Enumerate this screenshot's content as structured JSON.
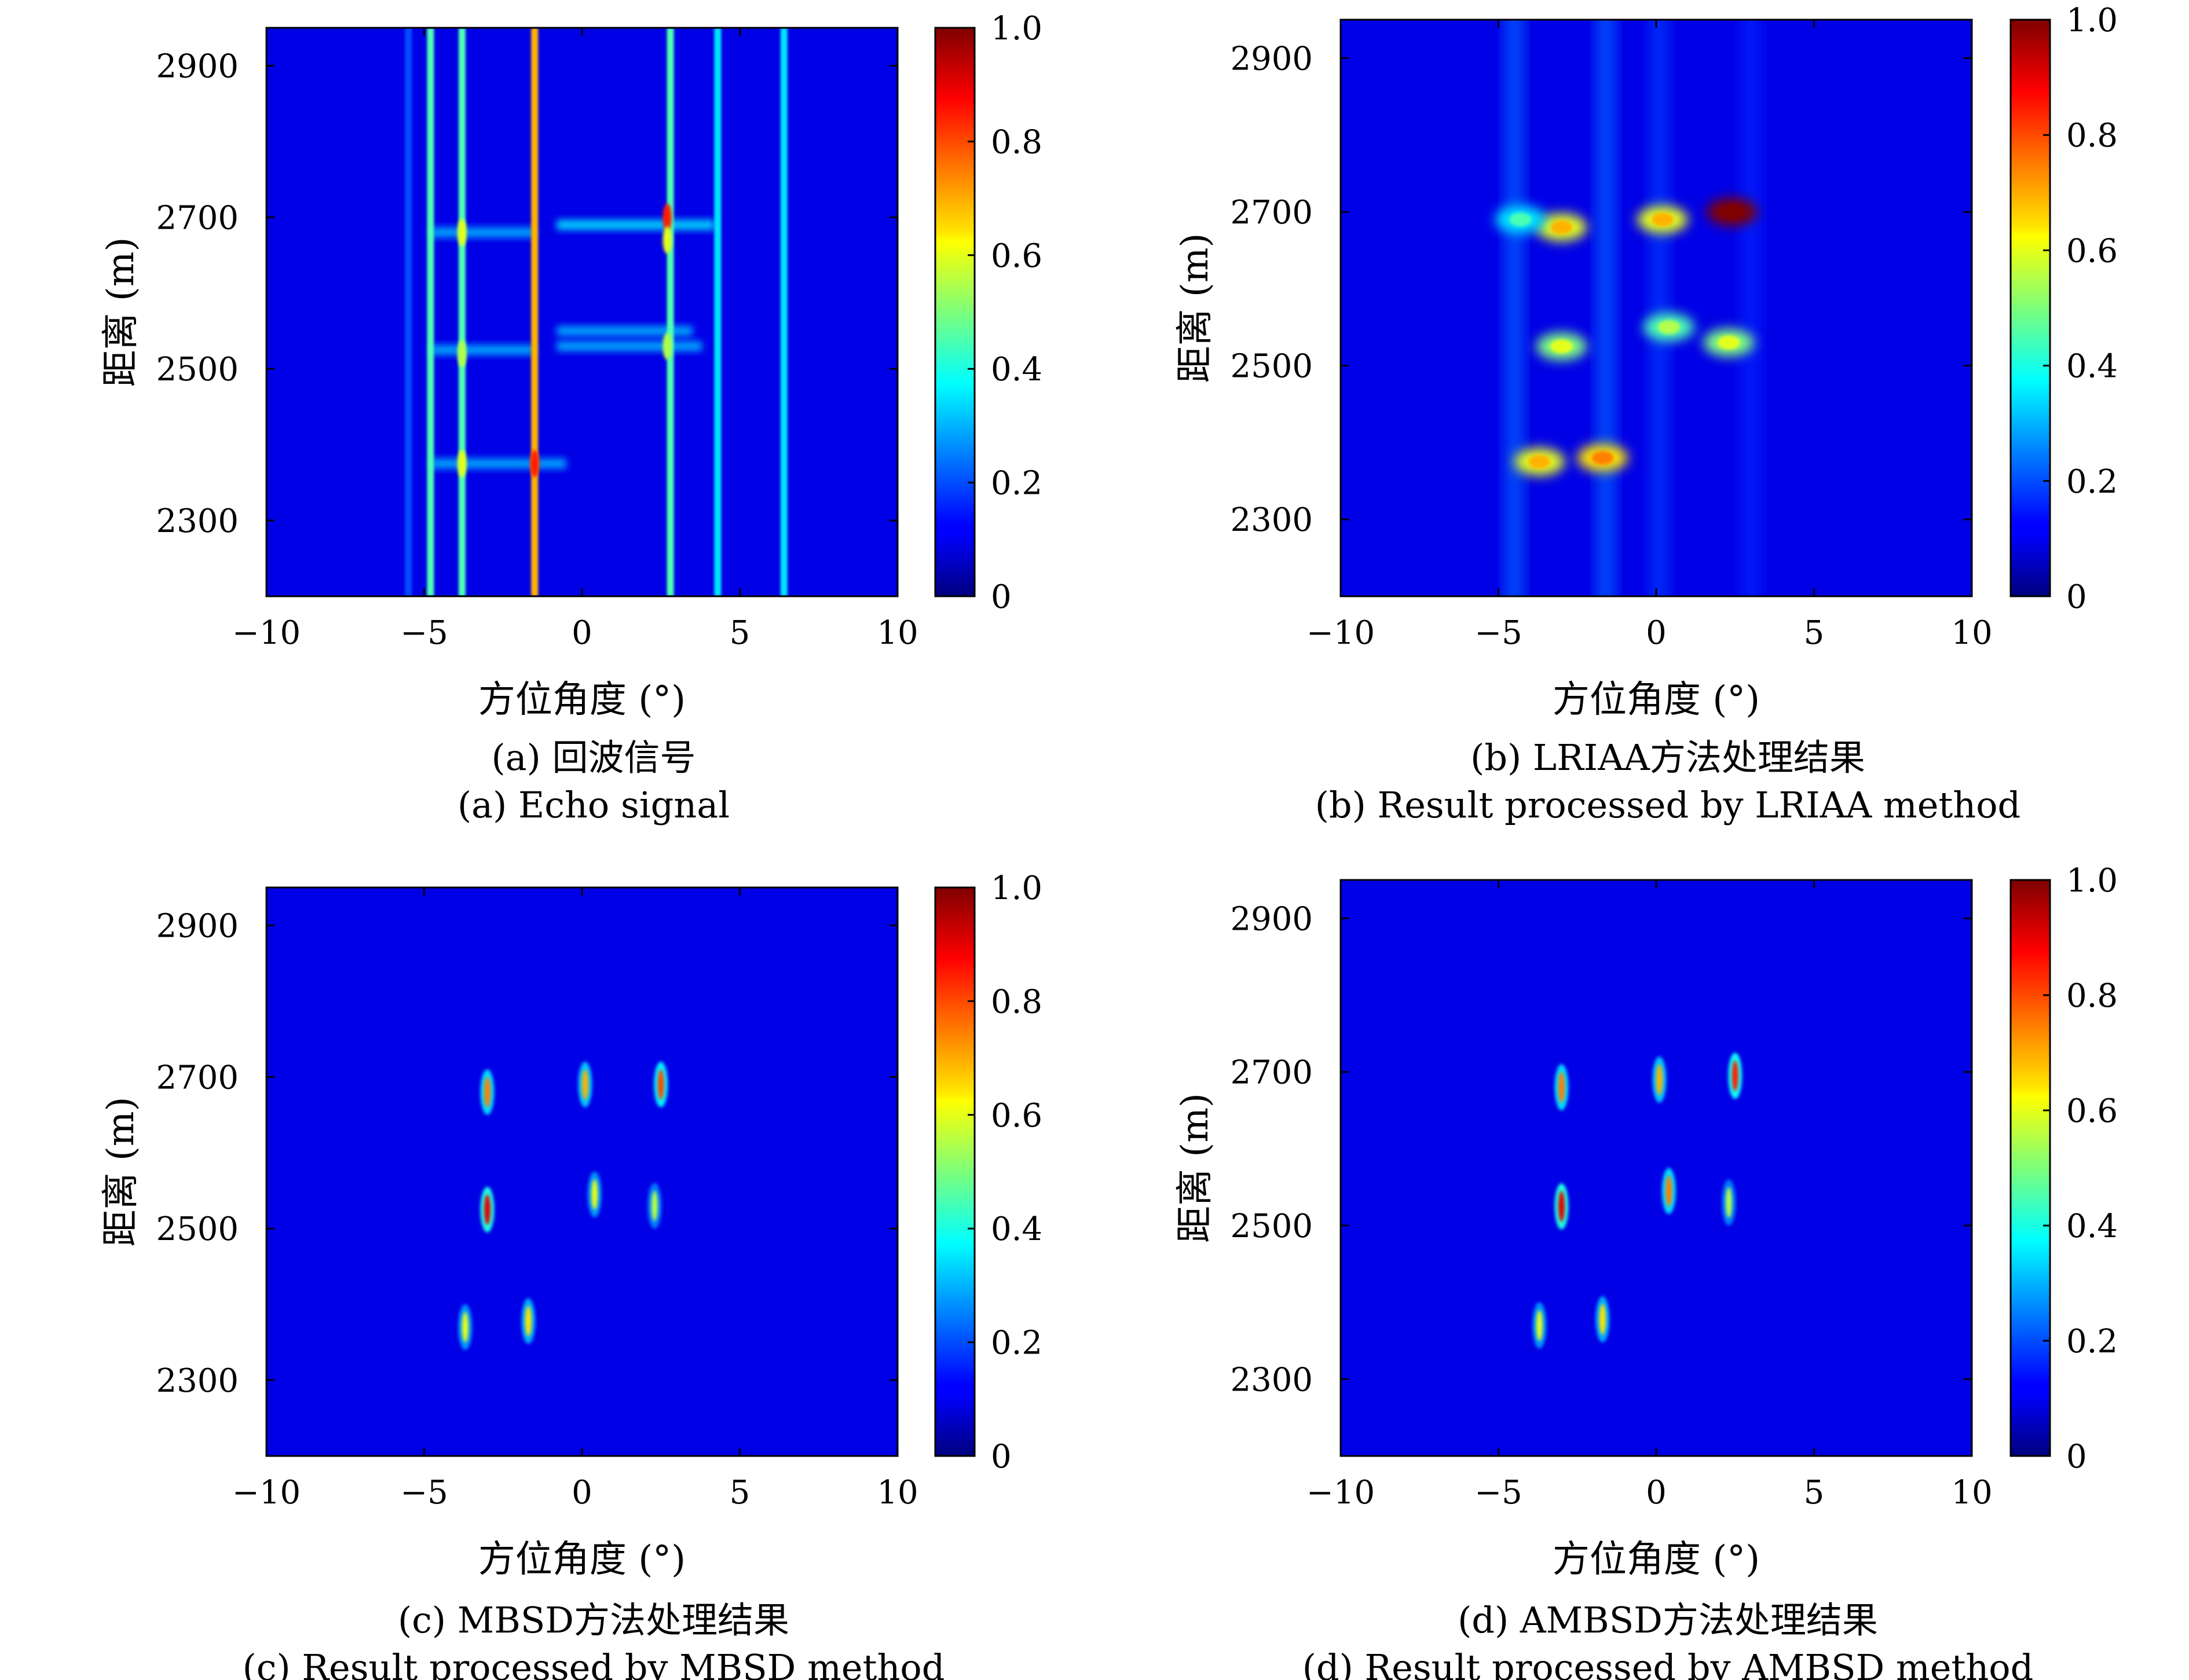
{
  "chart_data": [
    {
      "id": "a",
      "type": "heatmap",
      "caption_cn": "(a) 回波信号",
      "caption_en": "(a) Echo signal",
      "xlabel": "方位角度 (°)",
      "ylabel": "距离 (m)",
      "xlim": [
        -10,
        10
      ],
      "ylim": [
        2200,
        2950
      ],
      "xticks": [
        -10,
        -5,
        0,
        5,
        10
      ],
      "xtick_labels": [
        "−10",
        "−5",
        "0",
        "5",
        "10"
      ],
      "yticks": [
        2300,
        2500,
        2700,
        2900
      ],
      "ytick_labels": [
        "2300",
        "2500",
        "2700",
        "2900"
      ],
      "colorbar": {
        "range": [
          0,
          1
        ],
        "ticks": [
          "0",
          "0.2",
          "0.4",
          "0.6",
          "0.8",
          "1.0"
        ],
        "colormap": "jet"
      },
      "vertical_lines": [
        {
          "x": -5.5,
          "intensity": 0.2
        },
        {
          "x": -4.8,
          "intensity": 0.45
        },
        {
          "x": -3.8,
          "intensity": 0.45
        },
        {
          "x": -1.5,
          "intensity": 0.7
        },
        {
          "x": 2.8,
          "intensity": 0.45
        },
        {
          "x": 4.3,
          "intensity": 0.35
        },
        {
          "x": 6.4,
          "intensity": 0.35
        }
      ],
      "horizontal_streaks": [
        {
          "x0": -4.8,
          "x1": -1.5,
          "y": 2680,
          "intensity": 0.3
        },
        {
          "x0": -0.8,
          "x1": 4.2,
          "y": 2690,
          "intensity": 0.35
        },
        {
          "x0": -4.8,
          "x1": -1.5,
          "y": 2525,
          "intensity": 0.3
        },
        {
          "x0": -0.8,
          "x1": 3.5,
          "y": 2550,
          "intensity": 0.3
        },
        {
          "x0": -0.8,
          "x1": 3.8,
          "y": 2530,
          "intensity": 0.3
        },
        {
          "x0": -4.8,
          "x1": -0.5,
          "y": 2375,
          "intensity": 0.3
        }
      ],
      "hotspots": [
        {
          "x": 2.7,
          "y": 2700,
          "intensity": 0.85
        },
        {
          "x": 2.7,
          "y": 2670,
          "intensity": 0.6
        },
        {
          "x": -3.8,
          "y": 2680,
          "intensity": 0.6
        },
        {
          "x": -3.8,
          "y": 2520,
          "intensity": 0.55
        },
        {
          "x": -3.8,
          "y": 2375,
          "intensity": 0.6
        },
        {
          "x": -1.5,
          "y": 2375,
          "intensity": 0.85
        },
        {
          "x": 2.7,
          "y": 2530,
          "intensity": 0.55
        }
      ]
    },
    {
      "id": "b",
      "type": "heatmap",
      "caption_cn": "(b) LRIAA方法处理结果",
      "caption_en": "(b) Result processed by LRIAA method",
      "xlabel": "方位角度 (°)",
      "ylabel": "距离 (m)",
      "xlim": [
        -10,
        10
      ],
      "ylim": [
        2200,
        2950
      ],
      "xticks": [
        -10,
        -5,
        0,
        5,
        10
      ],
      "xtick_labels": [
        "−10",
        "−5",
        "0",
        "5",
        "10"
      ],
      "yticks": [
        2300,
        2500,
        2700,
        2900
      ],
      "ytick_labels": [
        "2300",
        "2500",
        "2700",
        "2900"
      ],
      "colorbar": {
        "range": [
          0,
          1
        ],
        "ticks": [
          "0",
          "0.2",
          "0.4",
          "0.6",
          "0.8",
          "1.0"
        ],
        "colormap": "jet"
      },
      "vertical_bands": [
        {
          "x": -4.5,
          "intensity": 0.22
        },
        {
          "x": -1.6,
          "intensity": 0.22
        },
        {
          "x": 0.1,
          "intensity": 0.18
        },
        {
          "x": 3.0,
          "intensity": 0.16
        },
        {
          "x": 6.8,
          "intensity": 0.1
        }
      ],
      "blobs": [
        {
          "x": -3.0,
          "y": 2680,
          "intensity": 0.6
        },
        {
          "x": -4.3,
          "y": 2690,
          "intensity": 0.35
        },
        {
          "x": 0.2,
          "y": 2690,
          "intensity": 0.6
        },
        {
          "x": 2.4,
          "y": 2700,
          "intensity": 1.0
        },
        {
          "x": -3.0,
          "y": 2525,
          "intensity": 0.5
        },
        {
          "x": 0.4,
          "y": 2550,
          "intensity": 0.45
        },
        {
          "x": 2.3,
          "y": 2530,
          "intensity": 0.5
        },
        {
          "x": -3.7,
          "y": 2375,
          "intensity": 0.6
        },
        {
          "x": -1.7,
          "y": 2380,
          "intensity": 0.65
        }
      ]
    },
    {
      "id": "c",
      "type": "heatmap",
      "caption_cn": "(c) MBSD方法处理结果",
      "caption_en": "(c) Result processed by MBSD method",
      "xlabel": "方位角度 (°)",
      "ylabel": "距离 (m)",
      "xlim": [
        -10,
        10
      ],
      "ylim": [
        2200,
        2950
      ],
      "xticks": [
        -10,
        -5,
        0,
        5,
        10
      ],
      "xtick_labels": [
        "−10",
        "−5",
        "0",
        "5",
        "10"
      ],
      "yticks": [
        2300,
        2500,
        2700,
        2900
      ],
      "ytick_labels": [
        "2300",
        "2500",
        "2700",
        "2900"
      ],
      "colorbar": {
        "range": [
          0,
          1
        ],
        "ticks": [
          "0",
          "0.2",
          "0.4",
          "0.6",
          "0.8",
          "1.0"
        ],
        "colormap": "jet"
      },
      "points": [
        {
          "x": -3.0,
          "y": 2680,
          "intensity": 0.75
        },
        {
          "x": 0.1,
          "y": 2690,
          "intensity": 0.7
        },
        {
          "x": 2.5,
          "y": 2690,
          "intensity": 0.8
        },
        {
          "x": -3.0,
          "y": 2525,
          "intensity": 0.9
        },
        {
          "x": 0.4,
          "y": 2545,
          "intensity": 0.6
        },
        {
          "x": 2.3,
          "y": 2530,
          "intensity": 0.55
        },
        {
          "x": -3.7,
          "y": 2370,
          "intensity": 0.6
        },
        {
          "x": -1.7,
          "y": 2378,
          "intensity": 0.65
        }
      ]
    },
    {
      "id": "d",
      "type": "heatmap",
      "caption_cn": "(d) AMBSD方法处理结果",
      "caption_en": "(d) Result processed by AMBSD method",
      "xlabel": "方位角度 (°)",
      "ylabel": "距离 (m)",
      "xlim": [
        -10,
        10
      ],
      "ylim": [
        2200,
        2950
      ],
      "xticks": [
        -10,
        -5,
        0,
        5,
        10
      ],
      "xtick_labels": [
        "−10",
        "−5",
        "0",
        "5",
        "10"
      ],
      "yticks": [
        2300,
        2500,
        2700,
        2900
      ],
      "ytick_labels": [
        "2300",
        "2500",
        "2700",
        "2900"
      ],
      "colorbar": {
        "range": [
          0,
          1
        ],
        "ticks": [
          "0",
          "0.2",
          "0.4",
          "0.6",
          "0.8",
          "1.0"
        ],
        "colormap": "jet"
      },
      "points": [
        {
          "x": -3.0,
          "y": 2680,
          "intensity": 0.75
        },
        {
          "x": 0.1,
          "y": 2690,
          "intensity": 0.7
        },
        {
          "x": 2.5,
          "y": 2695,
          "intensity": 0.85
        },
        {
          "x": -3.0,
          "y": 2525,
          "intensity": 0.9
        },
        {
          "x": 0.4,
          "y": 2545,
          "intensity": 0.75
        },
        {
          "x": 2.3,
          "y": 2530,
          "intensity": 0.55
        },
        {
          "x": -3.7,
          "y": 2370,
          "intensity": 0.6
        },
        {
          "x": -1.7,
          "y": 2378,
          "intensity": 0.65
        }
      ]
    }
  ]
}
